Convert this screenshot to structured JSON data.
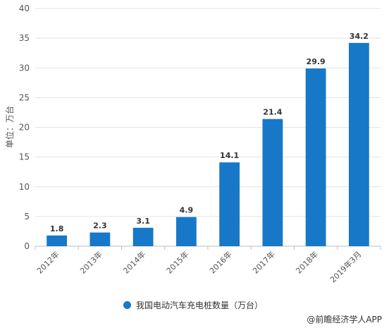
{
  "chart_data": {
    "type": "bar",
    "categories": [
      "2012年",
      "2013年",
      "2014年",
      "2015年",
      "2016年",
      "2017年",
      "2018年",
      "2019年3月"
    ],
    "series": [
      {
        "name": "我国电动汽车充电桩数量（万台）",
        "values": [
          1.8,
          2.3,
          3.1,
          4.9,
          14.1,
          21.4,
          29.9,
          34.2
        ]
      }
    ],
    "data_labels": [
      "1.8",
      "2.3",
      "3.1",
      "4.9",
      "14.1",
      "21.4",
      "29.9",
      "34.2"
    ],
    "yticks": [
      "0",
      "5",
      "10",
      "15",
      "20",
      "25",
      "30",
      "35",
      "40"
    ],
    "ylabel": "单位：万台",
    "ylim": [
      0,
      40
    ],
    "grid": true,
    "legend_position": "bottom",
    "color": "#1778c8"
  },
  "credit": "@前瞻经济学人APP"
}
